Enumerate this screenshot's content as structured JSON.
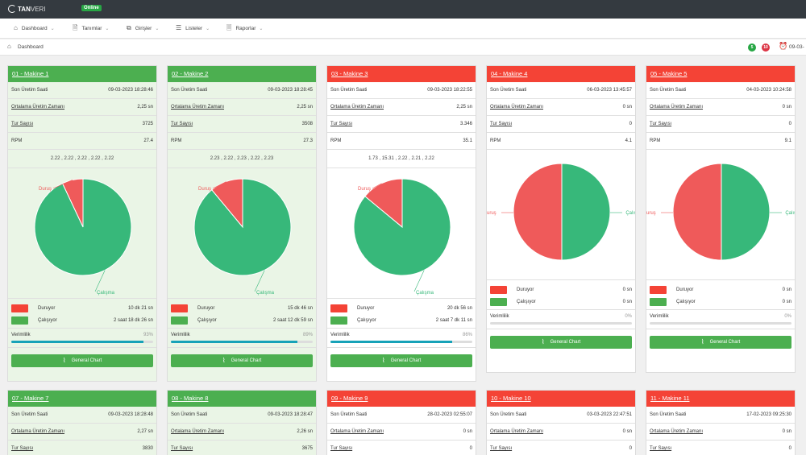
{
  "brand": {
    "name_bold": "TAN",
    "name_light": "VERI",
    "status": "Online"
  },
  "nav": [
    {
      "icon": "home-icon",
      "glyph": "⌂",
      "label": "Dashboard"
    },
    {
      "icon": "file-icon",
      "glyph": "🗎",
      "label": "Tanımlar"
    },
    {
      "icon": "copy-icon",
      "glyph": "⧉",
      "label": "Girişler"
    },
    {
      "icon": "list-icon",
      "glyph": "☰",
      "label": "Listeler"
    },
    {
      "icon": "report-icon",
      "glyph": "🗏",
      "label": "Raporlar"
    }
  ],
  "breadcrumb": {
    "label": "Dashboard",
    "running_count": "5",
    "stopped_count": "10",
    "date_fragment": "09-03-"
  },
  "labels": {
    "last_prod": "Son Üretim Saati",
    "avg_prod": "Ortalama Üretim Zamanı",
    "tour": "Tur Sayısı",
    "rpm": "RPM",
    "stopped": "Duruyor",
    "running": "Çalışıyor",
    "efficiency": "Verimlilik",
    "chart_button": "General Chart"
  },
  "colors": {
    "running": "#37b87a",
    "stopped": "#ef5a5a",
    "header_green": "#4caf50",
    "header_red": "#f44336"
  },
  "machines": [
    {
      "title": "01 - Makine 1",
      "status": "running",
      "last": "09-03-2023 18:28:46",
      "avg": "2,25 sn",
      "tour": "3725",
      "rpm": "27.4",
      "seq": "2.22 , 2.22 , 2.22 , 2.22 , 2.22",
      "stopped_time": "10 dk 21 sn",
      "running_time": "2 saat 18 dk 26 sn",
      "eff_label": "93%",
      "eff": 93,
      "pie_stopped": 7,
      "pie_running": 93,
      "pie_lbl_stop": "Duruş",
      "pie_lbl_run": "Çalışma"
    },
    {
      "title": "02 - Makine 2",
      "status": "running",
      "last": "09-03-2023 18:28:45",
      "avg": "2,25 sn",
      "tour": "3508",
      "rpm": "27.3",
      "seq": "2.23 , 2.22 , 2.23 , 2.22 , 2.23",
      "stopped_time": "15 dk 46 sn",
      "running_time": "2 saat 12 dk 59 sn",
      "eff_label": "89%",
      "eff": 89,
      "pie_stopped": 11,
      "pie_running": 89,
      "pie_lbl_stop": "Duruş",
      "pie_lbl_run": "Çalışma"
    },
    {
      "title": "03 - Makine 3",
      "status": "stopped",
      "last": "09-03-2023 18:22:55",
      "avg": "2,25 sn",
      "tour": "3.346",
      "rpm": "35.1",
      "seq": "1.73 , 15.31 , 2.22 , 2.21 , 2.22",
      "stopped_time": "20 dk 56 sn",
      "running_time": "2 saat 7 dk 11 sn",
      "eff_label": "86%",
      "eff": 86,
      "pie_stopped": 14,
      "pie_running": 86,
      "pie_lbl_stop": "Duruş",
      "pie_lbl_run": "Çalışma"
    },
    {
      "title": "04 - Makine 4",
      "status": "stopped",
      "last": "06-03-2023 13:45:57",
      "avg": "0 sn",
      "tour": "0",
      "rpm": "4.1",
      "seq": "",
      "stopped_time": "0 sn",
      "running_time": "0 sn",
      "eff_label": "0%",
      "eff": 0,
      "pie_stopped": 50,
      "pie_running": 50,
      "pie_lbl_stop": "uruş",
      "pie_lbl_run": "Çalış"
    },
    {
      "title": "05 - Makine 5",
      "status": "stopped",
      "last": "04-03-2023 10:24:58",
      "avg": "0 sn",
      "tour": "0",
      "rpm": "9.1",
      "seq": "",
      "stopped_time": "0 sn",
      "running_time": "0 sn",
      "eff_label": "0%",
      "eff": 0,
      "pie_stopped": 50,
      "pie_running": 50,
      "pie_lbl_stop": "uruş",
      "pie_lbl_run": "Çalış"
    }
  ],
  "machines_row2": [
    {
      "title": "07 - Makine 7",
      "status": "running",
      "last": "09-03-2023 18:28:48",
      "avg": "2,27 sn",
      "tour": "3830"
    },
    {
      "title": "08 - Makine 8",
      "status": "running",
      "last": "09-03-2023 18:28:47",
      "avg": "2,26 sn",
      "tour": "3675"
    },
    {
      "title": "09 - Makine 9",
      "status": "stopped",
      "last": "28-02-2023 02:55:07",
      "avg": "0 sn",
      "tour": "0"
    },
    {
      "title": "10 - Makine 10",
      "status": "stopped",
      "last": "03-03-2023 22:47:51",
      "avg": "0 sn",
      "tour": "0"
    },
    {
      "title": "11 - Makine 11",
      "status": "stopped",
      "last": "17-02-2023 09:25:30",
      "avg": "0 sn",
      "tour": "0"
    }
  ]
}
